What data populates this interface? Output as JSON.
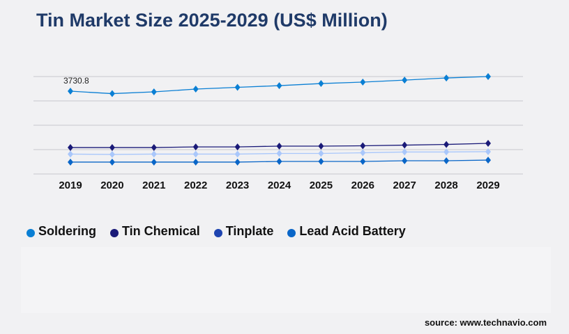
{
  "chart_data": {
    "type": "line",
    "title": "Tin Market Size 2025-2029 (US$ Million)",
    "x": [
      "2019",
      "2020",
      "2021",
      "2022",
      "2023",
      "2024",
      "2025",
      "2026",
      "2027",
      "2028",
      "2029"
    ],
    "ylim": [
      0,
      4390
    ],
    "grid": true,
    "legend": "bottom-left",
    "series": [
      {
        "name": "Soldering",
        "color": "#0a7fd4",
        "values": [
          3730.8,
          3620,
          3700,
          3825,
          3905,
          3980,
          4075,
          4140,
          4230,
          4325,
          4390
        ]
      },
      {
        "name": "Tin Chemical",
        "color": "#1a1a78",
        "values": [
          1190,
          1190,
          1190,
          1220,
          1220,
          1255,
          1255,
          1270,
          1300,
          1330,
          1380
        ]
      },
      {
        "name": "Tinplate",
        "color": "#1e44b0",
        "line_color": "#a9c7fb",
        "values": [
          895,
          880,
          895,
          895,
          895,
          925,
          925,
          955,
          990,
          990,
          1005
        ]
      },
      {
        "name": "Lead Acid Battery",
        "color": "#0a66c8",
        "values": [
          535,
          535,
          535,
          535,
          535,
          565,
          565,
          565,
          595,
          595,
          625
        ]
      }
    ],
    "annotations": [
      {
        "x": "2019",
        "series": "Soldering",
        "text": "3730.8"
      }
    ]
  },
  "source": "source: www.technavio.com"
}
